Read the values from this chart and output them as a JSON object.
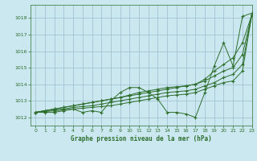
{
  "title": "Graphe pression niveau de la mer (hPa)",
  "background_color": "#cbe8f0",
  "plot_bg_color": "#cbe8f0",
  "grid_color": "#9bbccc",
  "line_color": "#2d6e2d",
  "xlim": [
    -0.5,
    23
  ],
  "ylim": [
    1011.5,
    1018.8
  ],
  "yticks": [
    1012,
    1013,
    1014,
    1015,
    1016,
    1017,
    1018
  ],
  "xticks": [
    0,
    1,
    2,
    3,
    4,
    5,
    6,
    7,
    8,
    9,
    10,
    11,
    12,
    13,
    14,
    15,
    16,
    17,
    18,
    19,
    20,
    21,
    22,
    23
  ],
  "lines": [
    [
      1012.3,
      1012.3,
      1012.3,
      1012.4,
      1012.5,
      1012.3,
      1012.4,
      1012.3,
      1013.0,
      1013.5,
      1013.8,
      1013.8,
      1013.5,
      1013.1,
      1012.3,
      1012.3,
      1012.2,
      1012.0,
      1013.5,
      1015.1,
      1016.5,
      1015.1,
      1018.1,
      1018.3
    ],
    [
      1012.3,
      1012.4,
      1012.5,
      1012.6,
      1012.7,
      1012.8,
      1012.9,
      1013.0,
      1013.1,
      1013.2,
      1013.3,
      1013.4,
      1013.5,
      1013.6,
      1013.7,
      1013.8,
      1013.9,
      1014.0,
      1014.3,
      1014.8,
      1015.2,
      1015.6,
      1016.5,
      1018.2
    ],
    [
      1012.3,
      1012.4,
      1012.5,
      1012.6,
      1012.7,
      1012.8,
      1012.9,
      1013.0,
      1013.1,
      1013.2,
      1013.35,
      1013.5,
      1013.6,
      1013.7,
      1013.8,
      1013.85,
      1013.9,
      1014.0,
      1014.2,
      1014.5,
      1014.8,
      1015.0,
      1015.8,
      1018.2
    ],
    [
      1012.3,
      1012.4,
      1012.45,
      1012.5,
      1012.6,
      1012.65,
      1012.7,
      1012.8,
      1012.9,
      1013.0,
      1013.1,
      1013.2,
      1013.3,
      1013.4,
      1013.5,
      1013.55,
      1013.6,
      1013.7,
      1013.9,
      1014.1,
      1014.4,
      1014.6,
      1015.2,
      1018.2
    ],
    [
      1012.3,
      1012.35,
      1012.4,
      1012.45,
      1012.5,
      1012.55,
      1012.6,
      1012.65,
      1012.7,
      1012.8,
      1012.9,
      1013.0,
      1013.1,
      1013.2,
      1013.3,
      1013.35,
      1013.4,
      1013.5,
      1013.7,
      1013.9,
      1014.1,
      1014.2,
      1014.8,
      1018.2
    ]
  ]
}
